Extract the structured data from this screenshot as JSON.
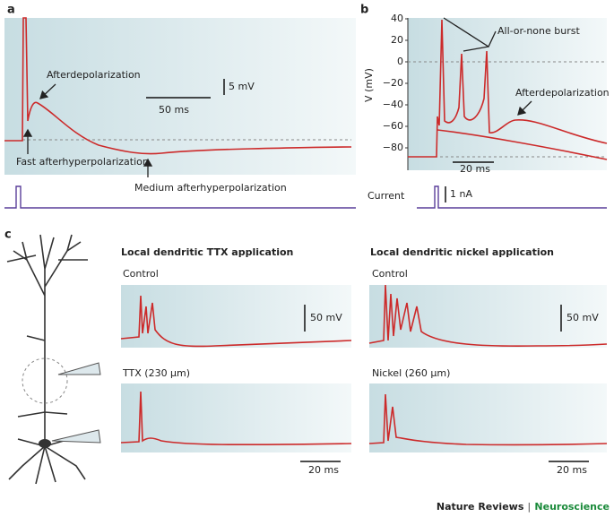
{
  "panel_a": {
    "label": "a",
    "annotations": [
      "Afterdepolarization",
      "Fast afterhyperpolarization",
      "Medium afterhyperpolarization"
    ],
    "scale_voltage": "5 mV",
    "scale_time": "50 ms"
  },
  "panel_b": {
    "label": "b",
    "y_axis_label": "V (mV)",
    "yticks": [
      "40",
      "20",
      "0",
      "−20",
      "−40",
      "−60",
      "−80"
    ],
    "annotations": [
      "All-or-none burst",
      "Afterdepolarization"
    ],
    "scale_time": "20 ms",
    "current_label": "Current",
    "scale_current": "1 nA"
  },
  "panel_c": {
    "label": "c",
    "ttx": {
      "title": "Local dendritic TTX application",
      "control_label": "Control",
      "treated_label": "TTX (230 μm)",
      "scale_voltage": "50 mV",
      "scale_time": "20 ms"
    },
    "nickel": {
      "title": "Local dendritic nickel application",
      "control_label": "Control",
      "treated_label": "Nickel (260 μm)",
      "scale_voltage": "50 mV",
      "scale_time": "20 ms"
    }
  },
  "footer": {
    "journal": "Nature Reviews",
    "separator": "|",
    "section": "Neuroscience"
  }
}
